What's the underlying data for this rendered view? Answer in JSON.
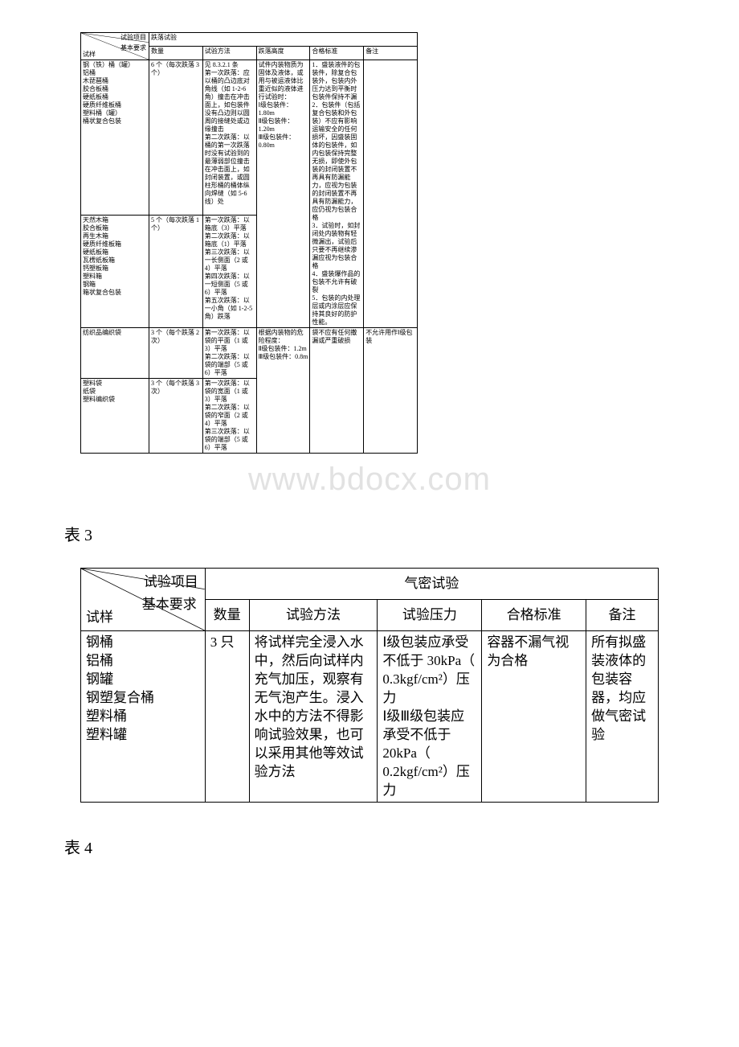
{
  "colors": {
    "text": "#000000",
    "border": "#000000",
    "bg": "#ffffff",
    "watermark": "#e2e2e2"
  },
  "table2": {
    "hdr_test_item": "试验项目",
    "hdr_basic": "基本要求",
    "hdr_sample": "试样",
    "merged_top": "跌落试验",
    "col_qty": "数量",
    "col_method": "试验方法",
    "col_height": "跌落高度",
    "col_std": "合格标准",
    "col_remark": "备注",
    "r1": {
      "sample": "钢（铁）桶（罐）\n铝桶\n木琵琶桶\n胶合板桶\n硬纸板桶\n硬质纤维板桶\n塑料桶（罐）\n桶状复合包装",
      "qty": "6 个（每次跌落 3 个）",
      "method": "见 8.3.2.1 条\n第一次跌落：应以桶的凸边底对角线（如 1-2-6 角）撞击在冲击面上，如包装件没有凸边则以圆周的接缝处或边缘撞击\n第二次跌落：以桶的第一次跌落时没有试验到的最薄弱部位撞击在冲击面上，如封闭装置，或圆柱形桶的桶体纵向焊缝（如 5-6 线）处",
      "height": "试件内装物质为固体及液体，或用与被运液体比重近似的液体进行试验时：\nⅠ级包装件：1.80m\nⅡ级包装件：1.20m\nⅢ级包装件：0.80m",
      "std": "1．盛装液件的包装件，除复合包装外，包装内外压力达到平衡时包装件保持不漏\n2．包装件（包括复合包装和外包装）不应有影响运输安全的任何损坏，因盛装固体的包装件，如内包装保持完整无损，即使外包装的封闭装置不再具有防漏能力，应视为包装的封闭装置不再具有防漏能力，应仍视为包装合格\n3．试验时，如封闭处内装物有轻微漏出，试验后只要不再继续渗漏应视为包装合格\n4．盛装爆作品的包装不允许有破裂\n5．包装的内处理层或内涂层应保持其良好的防护性能。"
    },
    "r2": {
      "sample": "天然木箱\n胶合板箱\n再生木箱\n硬质纤维板箱\n硬纸板箱\n瓦楞纸板箱\n钙塑板箱\n塑料箱\n钢箱\n箱状复合包装",
      "qty": "5 个（每次跌落 1 个）",
      "method": "第一次跌落：以箱底（3）平落\n第二次跌落：以箱底（1）平落\n第三次跌落：以一长侧面（2 或 4）平落\n第四次跌落：以一短侧面（5 或 6）平落\n第五次跌落：以一小角（如 1-2-5 角）跌落"
    },
    "r3": {
      "sample": "纺织品编织袋",
      "qty": "3 个（每个跌落 2 次）",
      "method": "第一次跌落：以袋的平面（1 或 3）平落\n第二次跌落：以袋的端部（5 或 6）平落",
      "height": "根据内装物的危险程度：\nⅡ级包装件：1.2m\nⅢ级包装件：0.8m",
      "std": "袋不应有任何撒漏或严重破损",
      "remark": "不允许用作Ⅰ级包装"
    },
    "r4": {
      "sample": "塑料袋\n纸袋\n塑料编织袋",
      "qty": "3 个（每个跌落 3 次）",
      "method": "第一次跌落：以袋的宽面（1 或 3）平落\n第二次跌落：以袋的窄面（2 或 4）平落\n第三次跌落：以袋的端部（5 或 6）平落"
    }
  },
  "watermark": "www.bdocx.com",
  "caption_t3": "表 3",
  "table3": {
    "hdr_test_item": "试验项目",
    "hdr_basic": "基本要求",
    "hdr_sample": "试样",
    "merged_top": "气密试验",
    "col_qty": "数量",
    "col_method": "试验方法",
    "col_pressure": "试验压力",
    "col_std": "合格标准",
    "col_remark": "备注",
    "r1": {
      "sample": "钢桶\n铝桶\n钢罐\n钢塑复合桶\n塑料桶\n塑料罐",
      "qty": "3 只",
      "method": "将试样完全浸入水中，然后向试样内充气加压，观察有无气泡产生。浸入水中的方法不得影响试验效果，也可以采用其他等效试验方法",
      "pressure": "Ⅰ级包装应承受不低于 30kPa（ 0.3kgf/cm²）压力\nⅠ级Ⅲ级包装应承受不低于 20kPa（ 0.2kgf/cm²）压力",
      "std": "容器不漏气视为合格",
      "remark": "所有拟盛装液体的包装容器，均应做气密试验"
    }
  },
  "caption_t4": "表 4"
}
